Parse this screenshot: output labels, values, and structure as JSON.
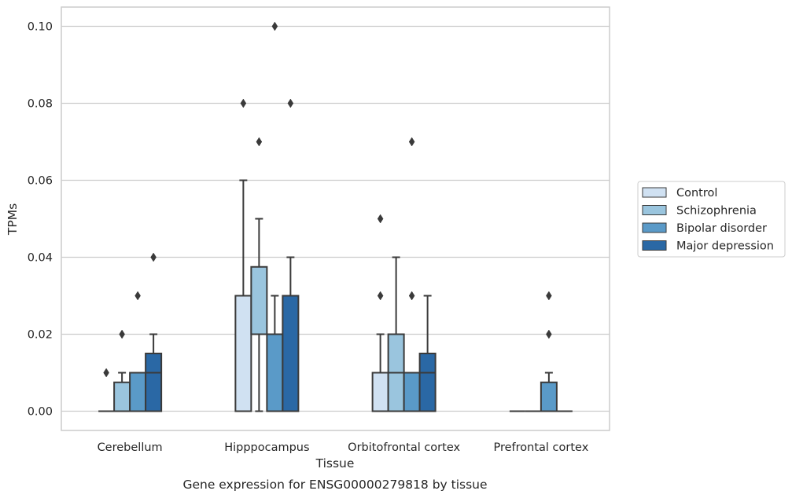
{
  "chart_data": {
    "type": "box",
    "xlabel": "Tissue",
    "ylabel": "TPMs",
    "caption": "Gene expression for ENSG00000279818 by tissue",
    "ylim": [
      -0.005,
      0.105
    ],
    "yticks": [
      "0.00",
      "0.02",
      "0.04",
      "0.06",
      "0.08",
      "0.10"
    ],
    "ytick_values": [
      0.0,
      0.02,
      0.04,
      0.06,
      0.08,
      0.1
    ],
    "grid": "horizontal",
    "legend_position": "right",
    "categories": [
      "Cerebellum",
      "Hipppocampus",
      "Orbitofrontal cortex",
      "Prefrontal cortex"
    ],
    "series": [
      {
        "name": "Control",
        "color": "#d0e1f2",
        "boxes": [
          {
            "q1": 0.0,
            "median": 0.0,
            "q3": 0.0,
            "whislo": 0.0,
            "whishi": 0.0,
            "fliers": [
              0.01
            ]
          },
          {
            "q1": 0.0,
            "median": 0.03,
            "q3": 0.03,
            "whislo": 0.0,
            "whishi": 0.06,
            "fliers": [
              0.08
            ]
          },
          {
            "q1": 0.0,
            "median": 0.0,
            "q3": 0.01,
            "whislo": 0.0,
            "whishi": 0.02,
            "fliers": [
              0.03,
              0.05
            ]
          },
          {
            "q1": 0.0,
            "median": 0.0,
            "q3": 0.0,
            "whislo": 0.0,
            "whishi": 0.0,
            "fliers": []
          }
        ]
      },
      {
        "name": "Schizophrenia",
        "color": "#9ac5de",
        "boxes": [
          {
            "q1": 0.0,
            "median": 0.0,
            "q3": 0.0075,
            "whislo": 0.0,
            "whishi": 0.01,
            "fliers": [
              0.02
            ]
          },
          {
            "q1": 0.02,
            "median": 0.02,
            "q3": 0.0375,
            "whislo": 0.0,
            "whishi": 0.05,
            "fliers": [
              0.07
            ]
          },
          {
            "q1": 0.0,
            "median": 0.01,
            "q3": 0.02,
            "whislo": 0.0,
            "whishi": 0.04,
            "fliers": []
          },
          {
            "q1": 0.0,
            "median": 0.0,
            "q3": 0.0,
            "whislo": 0.0,
            "whishi": 0.0,
            "fliers": []
          }
        ]
      },
      {
        "name": "Bipolar disorder",
        "color": "#5a9ac8",
        "boxes": [
          {
            "q1": 0.0,
            "median": 0.0,
            "q3": 0.01,
            "whislo": 0.0,
            "whishi": 0.01,
            "fliers": [
              0.03
            ]
          },
          {
            "q1": 0.0,
            "median": 0.02,
            "q3": 0.02,
            "whislo": 0.0,
            "whishi": 0.03,
            "fliers": [
              0.1
            ]
          },
          {
            "q1": 0.0,
            "median": 0.01,
            "q3": 0.01,
            "whislo": 0.0,
            "whishi": 0.01,
            "fliers": [
              0.03,
              0.07
            ]
          },
          {
            "q1": 0.0,
            "median": 0.0,
            "q3": 0.0075,
            "whislo": 0.0,
            "whishi": 0.01,
            "fliers": [
              0.02,
              0.03
            ]
          }
        ]
      },
      {
        "name": "Major depression",
        "color": "#2a68a5",
        "boxes": [
          {
            "q1": 0.0,
            "median": 0.01,
            "q3": 0.015,
            "whislo": 0.0,
            "whishi": 0.02,
            "fliers": [
              0.04
            ]
          },
          {
            "q1": 0.0,
            "median": 0.03,
            "q3": 0.03,
            "whislo": 0.0,
            "whishi": 0.04,
            "fliers": [
              0.08
            ]
          },
          {
            "q1": 0.0,
            "median": 0.01,
            "q3": 0.015,
            "whislo": 0.0,
            "whishi": 0.03,
            "fliers": []
          },
          {
            "q1": 0.0,
            "median": 0.0,
            "q3": 0.0,
            "whislo": 0.0,
            "whishi": 0.0,
            "fliers": []
          }
        ]
      }
    ]
  }
}
